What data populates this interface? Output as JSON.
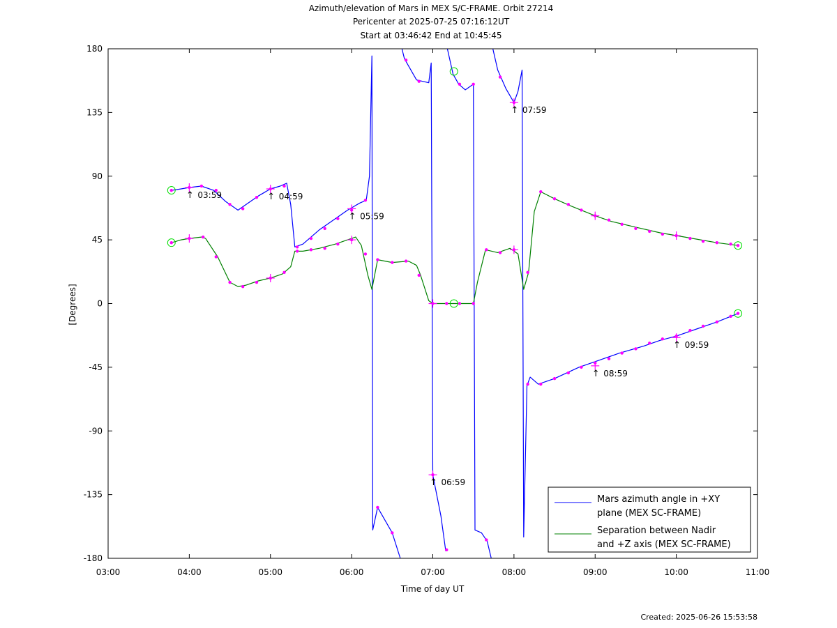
{
  "chart_data": {
    "type": "line",
    "title_lines": [
      "Azimuth/elevation of Mars in MEX S/C-FRAME.  Orbit 27214",
      "Pericenter at 2025-07-25 07:16:12UT",
      "Start at 03:46:42 End at 10:45:45"
    ],
    "xlabel": "Time of day UT",
    "ylabel": "[Degrees]",
    "xlim": [
      3.0,
      11.0
    ],
    "ylim": [
      -180,
      180
    ],
    "x_ticks": [
      3,
      4,
      5,
      6,
      7,
      8,
      9,
      10,
      11
    ],
    "x_tick_labels": [
      "03:00",
      "04:00",
      "05:00",
      "06:00",
      "07:00",
      "08:00",
      "09:00",
      "10:00",
      "11:00"
    ],
    "y_ticks": [
      180,
      135,
      90,
      45,
      0,
      -45,
      -90,
      -135,
      -180
    ],
    "y_tick_labels": [
      "180",
      "135",
      "90",
      "45",
      "0",
      "-45",
      "-90",
      "-135",
      "-180"
    ],
    "legend_position": "bottom-right",
    "series": [
      {
        "name": "Mars azimuth angle in +XY plane (MEX SC-FRAME)",
        "legend_lines": [
          "Mars azimuth angle in +XY",
          "plane (MEX SC-FRAME)"
        ],
        "color": "#0000ff",
        "segments": [
          [
            [
              3.78,
              80
            ],
            [
              3.9,
              81
            ],
            [
              4.0,
              82
            ],
            [
              4.15,
              83
            ],
            [
              4.3,
              80
            ],
            [
              4.45,
              72
            ],
            [
              4.6,
              66
            ],
            [
              4.7,
              70
            ],
            [
              4.85,
              76
            ],
            [
              5.0,
              81
            ],
            [
              5.12,
              83
            ],
            [
              5.2,
              85
            ],
            [
              5.25,
              70
            ],
            [
              5.3,
              40
            ],
            [
              5.4,
              42
            ],
            [
              5.6,
              52
            ],
            [
              5.8,
              60
            ],
            [
              5.95,
              66
            ],
            [
              6.1,
              71
            ],
            [
              6.18,
              73
            ],
            [
              6.22,
              90
            ],
            [
              6.25,
              175
            ],
            [
              6.26,
              -160
            ],
            [
              6.32,
              -144
            ],
            [
              6.5,
              -162
            ],
            [
              6.6,
              -180
            ]
          ],
          [
            [
              6.62,
              180
            ],
            [
              6.65,
              173
            ],
            [
              6.8,
              158
            ],
            [
              6.95,
              156
            ],
            [
              6.98,
              170
            ],
            [
              7.0,
              -121
            ],
            [
              7.1,
              -150
            ],
            [
              7.16,
              -175
            ]
          ],
          [
            [
              7.18,
              180
            ],
            [
              7.25,
              162
            ],
            [
              7.32,
              155
            ],
            [
              7.4,
              151
            ],
            [
              7.5,
              155
            ],
            [
              7.52,
              -160
            ],
            [
              7.6,
              -162
            ],
            [
              7.67,
              -168
            ],
            [
              7.72,
              -180
            ]
          ],
          [
            [
              7.74,
              180
            ],
            [
              7.8,
              165
            ],
            [
              7.9,
              152
            ],
            [
              8.0,
              142
            ],
            [
              8.05,
              150
            ],
            [
              8.1,
              165
            ],
            [
              8.12,
              -165
            ],
            [
              8.16,
              -58
            ],
            [
              8.2,
              -52
            ],
            [
              8.3,
              -57
            ],
            [
              8.5,
              -53
            ],
            [
              8.8,
              -45
            ],
            [
              9.0,
              -41
            ],
            [
              9.3,
              -35
            ],
            [
              9.6,
              -30
            ],
            [
              9.8,
              -26
            ],
            [
              10.0,
              -23
            ],
            [
              10.3,
              -17
            ],
            [
              10.5,
              -13
            ],
            [
              10.76,
              -7
            ]
          ]
        ]
      },
      {
        "name": "Separation between Nadir and +Z axis (MEX SC-FRAME)",
        "legend_lines": [
          "Separation between Nadir",
          "and +Z axis (MEX SC-FRAME)"
        ],
        "color": "#008000",
        "segments": [
          [
            [
              3.78,
              43
            ],
            [
              3.9,
              45
            ],
            [
              4.0,
              46
            ],
            [
              4.15,
              47
            ],
            [
              4.2,
              46
            ],
            [
              4.35,
              33
            ],
            [
              4.5,
              15
            ],
            [
              4.6,
              12
            ],
            [
              4.7,
              13
            ],
            [
              4.85,
              16
            ],
            [
              5.0,
              18
            ],
            [
              5.15,
              21
            ],
            [
              5.25,
              26
            ],
            [
              5.3,
              37
            ],
            [
              5.4,
              37
            ],
            [
              5.6,
              39
            ],
            [
              5.8,
              42
            ],
            [
              5.95,
              45
            ],
            [
              6.05,
              47
            ],
            [
              6.12,
              41
            ],
            [
              6.2,
              20
            ],
            [
              6.25,
              10
            ],
            [
              6.32,
              31
            ],
            [
              6.5,
              29
            ],
            [
              6.7,
              30
            ],
            [
              6.8,
              27
            ],
            [
              6.85,
              20
            ],
            [
              6.95,
              2
            ],
            [
              7.0,
              0
            ],
            [
              7.2,
              0
            ],
            [
              7.35,
              0
            ],
            [
              7.5,
              0
            ],
            [
              7.55,
              15
            ],
            [
              7.65,
              38
            ],
            [
              7.8,
              36
            ],
            [
              7.95,
              39
            ],
            [
              8.05,
              35
            ],
            [
              8.12,
              10
            ],
            [
              8.18,
              22
            ],
            [
              8.25,
              65
            ],
            [
              8.33,
              79
            ],
            [
              8.5,
              74
            ],
            [
              8.7,
              69
            ],
            [
              9.0,
              62
            ],
            [
              9.2,
              58
            ],
            [
              9.5,
              54
            ],
            [
              9.8,
              50
            ],
            [
              10.0,
              48
            ],
            [
              10.3,
              45
            ],
            [
              10.5,
              43
            ],
            [
              10.76,
              41
            ]
          ]
        ]
      }
    ],
    "start_end_marker_points": [
      [
        3.78,
        80
      ],
      [
        3.78,
        43
      ],
      [
        10.76,
        -7
      ],
      [
        10.76,
        41
      ],
      [
        7.26,
        164
      ],
      [
        7.26,
        0
      ]
    ],
    "hour_markers": [
      {
        "x": 4.0,
        "y": 82,
        "label": "03:59"
      },
      {
        "x": 5.0,
        "y": 81,
        "label": "04:59"
      },
      {
        "x": 6.0,
        "y": 67,
        "label": "05:59"
      },
      {
        "x": 7.0,
        "y": -121,
        "label": "06:59"
      },
      {
        "x": 8.0,
        "y": 142,
        "label": "07:59"
      },
      {
        "x": 9.0,
        "y": -44,
        "label": "08:59"
      },
      {
        "x": 10.0,
        "y": -24,
        "label": "09:59"
      },
      {
        "x": 4.0,
        "y": 46,
        "label": ""
      },
      {
        "x": 5.0,
        "y": 18,
        "label": ""
      },
      {
        "x": 6.0,
        "y": 45,
        "label": ""
      },
      {
        "x": 7.0,
        "y": 0,
        "label": ""
      },
      {
        "x": 8.0,
        "y": 38,
        "label": ""
      },
      {
        "x": 9.0,
        "y": 62,
        "label": ""
      },
      {
        "x": 10.0,
        "y": 48,
        "label": ""
      }
    ],
    "sample_dots": [
      [
        3.78,
        80
      ],
      [
        4.0,
        82
      ],
      [
        4.15,
        83
      ],
      [
        4.33,
        80
      ],
      [
        4.5,
        70
      ],
      [
        4.66,
        67
      ],
      [
        4.83,
        75
      ],
      [
        5.0,
        81
      ],
      [
        5.17,
        83
      ],
      [
        5.33,
        40
      ],
      [
        5.5,
        46
      ],
      [
        5.67,
        53
      ],
      [
        5.83,
        60
      ],
      [
        6.0,
        66
      ],
      [
        6.17,
        73
      ],
      [
        6.32,
        -144
      ],
      [
        6.5,
        -162
      ],
      [
        6.67,
        172
      ],
      [
        6.83,
        157
      ],
      [
        7.0,
        -121
      ],
      [
        7.17,
        -174
      ],
      [
        7.33,
        155
      ],
      [
        7.5,
        155
      ],
      [
        7.66,
        -167
      ],
      [
        7.83,
        160
      ],
      [
        8.0,
        142
      ],
      [
        8.17,
        -57
      ],
      [
        8.33,
        -57
      ],
      [
        8.5,
        -53
      ],
      [
        8.67,
        -49
      ],
      [
        8.83,
        -45
      ],
      [
        9.0,
        -42
      ],
      [
        9.17,
        -39
      ],
      [
        9.33,
        -35
      ],
      [
        9.5,
        -32
      ],
      [
        9.67,
        -28
      ],
      [
        9.83,
        -25
      ],
      [
        10.0,
        -23
      ],
      [
        10.17,
        -19
      ],
      [
        10.33,
        -16
      ],
      [
        10.5,
        -13
      ],
      [
        10.67,
        -9
      ],
      [
        10.76,
        -7
      ],
      [
        3.78,
        43
      ],
      [
        4.0,
        46
      ],
      [
        4.17,
        47
      ],
      [
        4.33,
        33
      ],
      [
        4.5,
        15
      ],
      [
        4.66,
        12
      ],
      [
        4.83,
        15
      ],
      [
        5.0,
        18
      ],
      [
        5.17,
        22
      ],
      [
        5.33,
        37
      ],
      [
        5.5,
        38
      ],
      [
        5.67,
        39
      ],
      [
        5.83,
        42
      ],
      [
        6.0,
        45
      ],
      [
        6.17,
        35
      ],
      [
        6.32,
        31
      ],
      [
        6.5,
        29
      ],
      [
        6.67,
        30
      ],
      [
        6.83,
        20
      ],
      [
        7.0,
        0
      ],
      [
        7.17,
        0
      ],
      [
        7.33,
        0
      ],
      [
        7.5,
        0
      ],
      [
        7.66,
        38
      ],
      [
        7.83,
        36
      ],
      [
        8.0,
        38
      ],
      [
        8.17,
        22
      ],
      [
        8.33,
        79
      ],
      [
        8.5,
        74
      ],
      [
        8.67,
        70
      ],
      [
        8.83,
        66
      ],
      [
        9.0,
        62
      ],
      [
        9.17,
        59
      ],
      [
        9.33,
        56
      ],
      [
        9.5,
        53
      ],
      [
        9.67,
        51
      ],
      [
        9.83,
        49
      ],
      [
        10.0,
        48
      ],
      [
        10.17,
        46
      ],
      [
        10.33,
        44
      ],
      [
        10.5,
        43
      ],
      [
        10.67,
        42
      ],
      [
        10.76,
        41
      ]
    ],
    "created_text": "Created: 2025-06-26 15:53:58"
  }
}
